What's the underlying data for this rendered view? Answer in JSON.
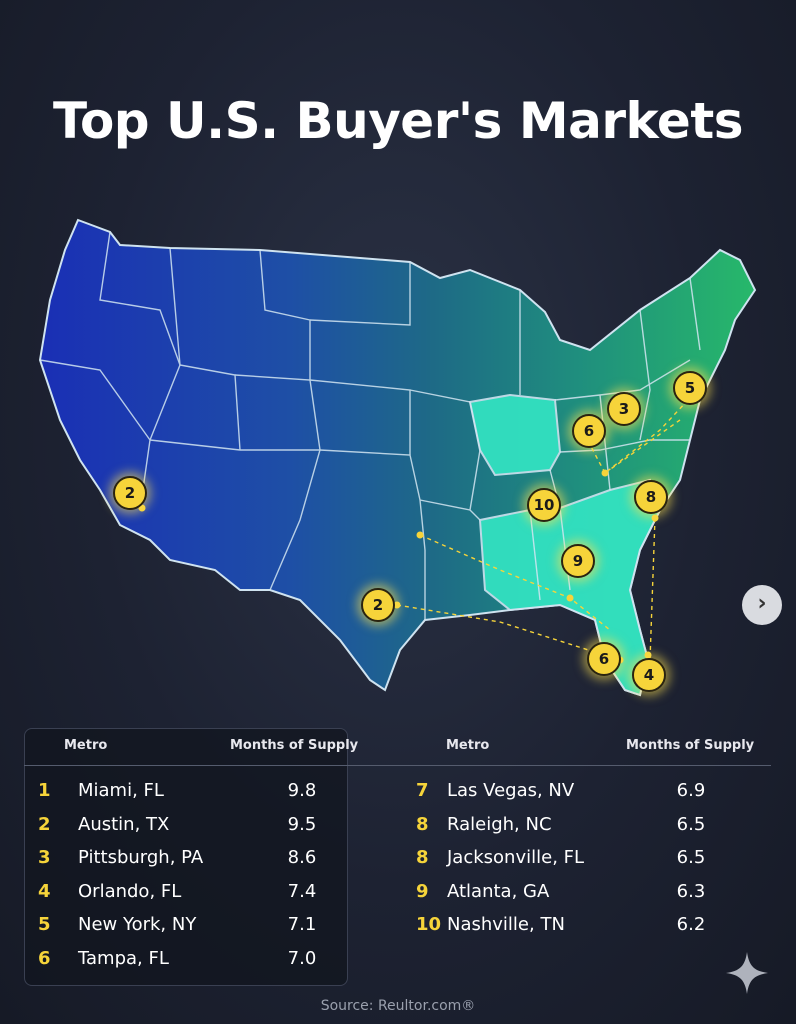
{
  "title": "Top U.S. Buyer's Markets",
  "table": {
    "headers": {
      "metro": "Metro",
      "supply": "Months of Supply"
    },
    "rows_left": [
      {
        "rank": "1",
        "metro": "Miami, FL",
        "supply": "9.8"
      },
      {
        "rank": "2",
        "metro": "Austin, TX",
        "supply": "9.5"
      },
      {
        "rank": "3",
        "metro": "Pittsburgh, PA",
        "supply": "8.6"
      },
      {
        "rank": "4",
        "metro": "Orlando, FL",
        "supply": "7.4"
      },
      {
        "rank": "5",
        "metro": "New York, NY",
        "supply": "7.1"
      },
      {
        "rank": "6",
        "metro": "Tampa, FL",
        "supply": "7.0"
      }
    ],
    "rows_right": [
      {
        "rank": "7",
        "metro": "Las Vegas, NV",
        "supply": "6.9"
      },
      {
        "rank": "8",
        "metro": "Raleigh, NC",
        "supply": "6.5"
      },
      {
        "rank": "8",
        "metro": "Jacksonville, FL",
        "supply": "6.5"
      },
      {
        "rank": "9",
        "metro": "Atlanta, GA",
        "supply": "6.3"
      },
      {
        "rank": "10",
        "metro": "Nashville, TN",
        "supply": "6.2"
      }
    ]
  },
  "map_badges": [
    "2",
    "2",
    "3",
    "5",
    "6",
    "10",
    "8",
    "9",
    "6",
    "4"
  ],
  "source": "Source: Reultor.com®",
  "next_icon": "chevron-right-icon",
  "colors": {
    "badge": "#f6d43a",
    "west": "#1d3fb8",
    "central": "#1d6a86",
    "east": "#22b07a",
    "highlight": "#34e6c4"
  }
}
